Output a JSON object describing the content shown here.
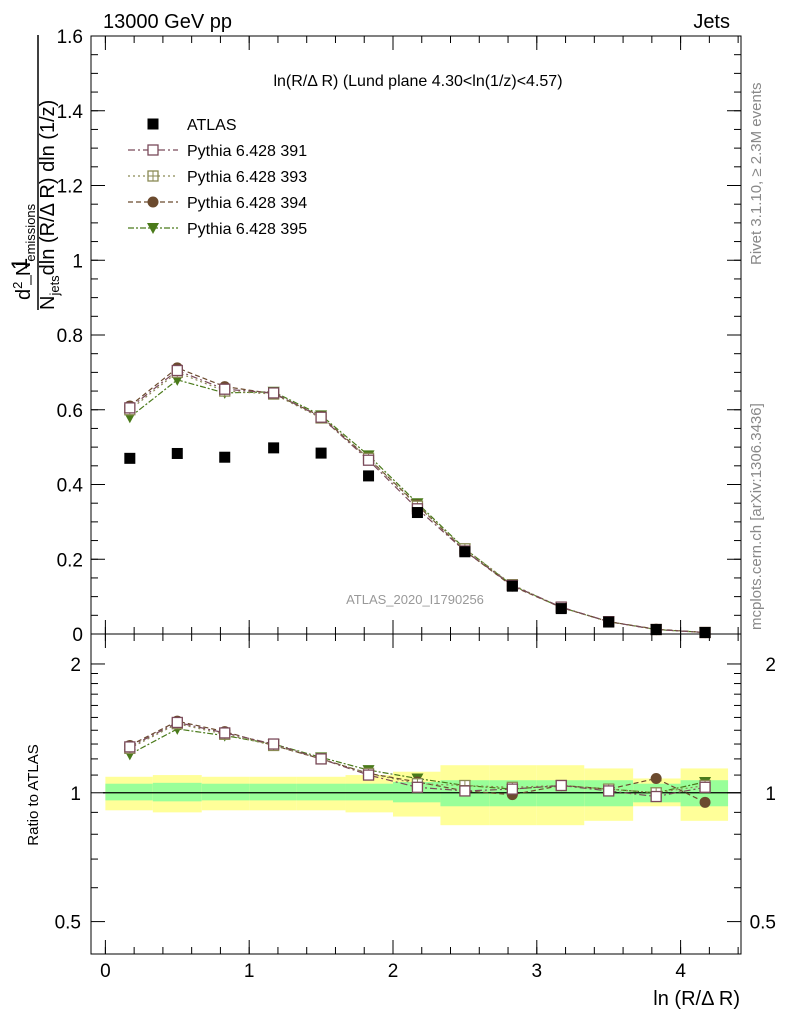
{
  "header": {
    "left": "13000 GeV pp",
    "right": "Jets"
  },
  "side": {
    "rivet": "Rivet 3.1.10, ≥ 2.3M events",
    "mcplots": "mcplots.cern.ch [arXiv:1306.3436]"
  },
  "plot_title": "ln(R/Δ R) (Lund plane 4.30<ln(1/z)<4.57)",
  "watermark": "ATLAS_2020_I1790256",
  "ylabel_main": "1/N_jets d²N_emissions / dln(R/ΔR) dln(1/z)",
  "ylabel_ratio": "Ratio to ATLAS",
  "xlabel": "ln (R/Δ R)",
  "colors": {
    "data": "#000000",
    "p391": "#7a4a5a",
    "p393": "#8a8a55",
    "p394": "#6b4a2e",
    "p395": "#4a7a1a",
    "band_inner": "#99ff99",
    "band_outer": "#ffff99"
  },
  "chart_data": [
    {
      "type": "scatter",
      "panel": "main",
      "xlim": [
        -0.1,
        4.42
      ],
      "ylim": [
        0,
        1.6
      ],
      "yticks": [
        "0",
        "0.2",
        "0.4",
        "0.6",
        "0.8",
        "1",
        "1.2",
        "1.4",
        "1.6"
      ],
      "grid": false,
      "legend_position": "top-left",
      "x": [
        0.17,
        0.5,
        0.83,
        1.17,
        1.5,
        1.83,
        2.17,
        2.5,
        2.83,
        3.17,
        3.5,
        3.83,
        4.17
      ],
      "series": [
        {
          "name": "ATLAS",
          "marker": "filled-square",
          "values": [
            0.47,
            0.483,
            0.473,
            0.498,
            0.484,
            0.423,
            0.325,
            0.22,
            0.128,
            0.068,
            0.032,
            0.012,
            0.004
          ]
        },
        {
          "name": "Pythia 6.428 391",
          "marker": "open-square",
          "values": [
            0.605,
            0.705,
            0.655,
            0.645,
            0.58,
            0.465,
            0.335,
            0.222,
            0.13,
            0.072,
            0.033,
            0.012,
            0.004
          ]
        },
        {
          "name": "Pythia 6.428 393",
          "marker": "open-cross-square",
          "values": [
            0.6,
            0.7,
            0.65,
            0.642,
            0.578,
            0.47,
            0.342,
            0.228,
            0.132,
            0.071,
            0.033,
            0.012,
            0.004
          ]
        },
        {
          "name": "Pythia 6.428 394",
          "marker": "filled-circle",
          "values": [
            0.61,
            0.712,
            0.662,
            0.643,
            0.582,
            0.47,
            0.345,
            0.222,
            0.128,
            0.071,
            0.033,
            0.013,
            0.004
          ]
        },
        {
          "name": "Pythia 6.428 395",
          "marker": "filled-triangle-down",
          "values": [
            0.58,
            0.68,
            0.645,
            0.648,
            0.585,
            0.478,
            0.35,
            0.228,
            0.13,
            0.071,
            0.033,
            0.012,
            0.004
          ]
        }
      ]
    },
    {
      "type": "scatter",
      "panel": "ratio",
      "ylabel": "Ratio to ATLAS",
      "xlim": [
        -0.1,
        4.42
      ],
      "ylim": [
        0.42,
        2.35
      ],
      "ylog": true,
      "yticks": [
        "0.5",
        "1",
        "2"
      ],
      "xticks": [
        "0",
        "1",
        "2",
        "3",
        "4"
      ],
      "reference_line": 1,
      "x": [
        0.17,
        0.5,
        0.83,
        1.17,
        1.5,
        1.83,
        2.17,
        2.5,
        2.83,
        3.17,
        3.5,
        3.83,
        4.17
      ],
      "bins": [
        [
          0,
          0.33
        ],
        [
          0.33,
          0.67
        ],
        [
          0.67,
          1.0
        ],
        [
          1.0,
          1.33
        ],
        [
          1.33,
          1.67
        ],
        [
          1.67,
          2.0
        ],
        [
          2.0,
          2.33
        ],
        [
          2.33,
          2.67
        ],
        [
          2.67,
          3.0
        ],
        [
          3.0,
          3.33
        ],
        [
          3.33,
          3.67
        ],
        [
          3.67,
          4.0
        ],
        [
          4.0,
          4.33
        ]
      ],
      "band_inner": [
        [
          0.96,
          1.05
        ],
        [
          0.955,
          1.055
        ],
        [
          0.96,
          1.05
        ],
        [
          0.96,
          1.05
        ],
        [
          0.96,
          1.05
        ],
        [
          0.96,
          1.05
        ],
        [
          0.95,
          1.06
        ],
        [
          0.93,
          1.07
        ],
        [
          0.93,
          1.07
        ],
        [
          0.93,
          1.07
        ],
        [
          0.93,
          1.07
        ],
        [
          0.95,
          1.05
        ],
        [
          0.93,
          1.07
        ]
      ],
      "band_outer": [
        [
          0.91,
          1.09
        ],
        [
          0.9,
          1.1
        ],
        [
          0.91,
          1.09
        ],
        [
          0.91,
          1.09
        ],
        [
          0.91,
          1.09
        ],
        [
          0.9,
          1.1
        ],
        [
          0.88,
          1.12
        ],
        [
          0.84,
          1.16
        ],
        [
          0.84,
          1.16
        ],
        [
          0.84,
          1.16
        ],
        [
          0.86,
          1.14
        ],
        [
          0.93,
          1.08
        ],
        [
          0.86,
          1.14
        ]
      ],
      "series": [
        {
          "name": "Pythia 6.428 391",
          "marker": "open-square",
          "values": [
            1.28,
            1.46,
            1.38,
            1.3,
            1.2,
            1.1,
            1.03,
            1.01,
            1.02,
            1.04,
            1.01,
            0.98,
            1.03
          ]
        },
        {
          "name": "Pythia 6.428 393",
          "marker": "open-cross-square",
          "values": [
            1.27,
            1.45,
            1.37,
            1.29,
            1.2,
            1.11,
            1.05,
            1.04,
            1.03,
            1.04,
            1.02,
            1.0,
            1.04
          ]
        },
        {
          "name": "Pythia 6.428 394",
          "marker": "filled-circle",
          "values": [
            1.29,
            1.47,
            1.39,
            1.29,
            1.2,
            1.11,
            1.06,
            1.01,
            0.99,
            1.04,
            1.02,
            1.08,
            0.95
          ]
        },
        {
          "name": "Pythia 6.428 395",
          "marker": "filled-triangle-down",
          "values": [
            1.23,
            1.41,
            1.36,
            1.3,
            1.21,
            1.13,
            1.08,
            1.04,
            1.02,
            1.04,
            1.02,
            1.0,
            1.06
          ]
        }
      ]
    }
  ]
}
